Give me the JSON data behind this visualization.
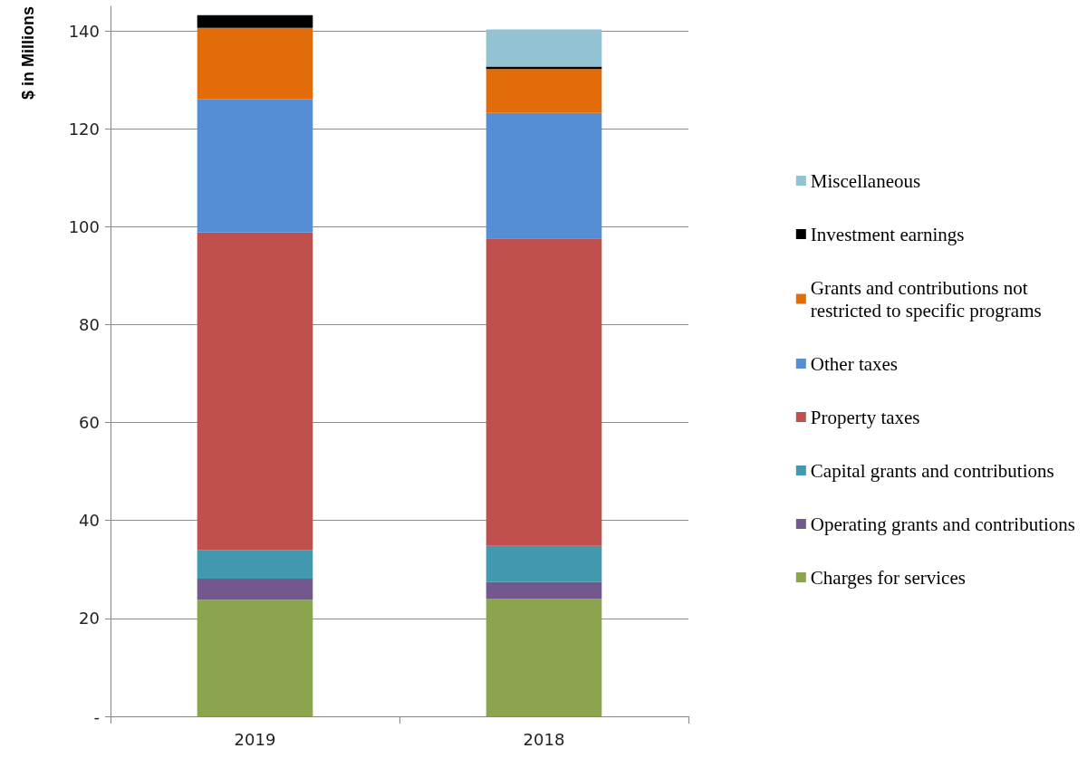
{
  "chart_data": {
    "type": "bar",
    "stacked": true,
    "ylabel": "$ in Millions",
    "categories": [
      "2019",
      "2018"
    ],
    "series": [
      {
        "name": "Charges for services",
        "color": "#8aa54e",
        "values": [
          23.8,
          24.0
        ]
      },
      {
        "name": "Operating grants and contributions",
        "color": "#72588c",
        "values": [
          4.3,
          3.4
        ]
      },
      {
        "name": "Capital grants and contributions",
        "color": "#4298af",
        "values": [
          5.9,
          7.4
        ]
      },
      {
        "name": "Property taxes",
        "color": "#c0504d",
        "values": [
          64.8,
          62.8
        ]
      },
      {
        "name": "Other taxes",
        "color": "#558ed5",
        "values": [
          27.2,
          25.6
        ]
      },
      {
        "name": "Grants and contributions not restricted to specific programs",
        "color": "#e36c0a",
        "values": [
          14.6,
          9.0
        ]
      },
      {
        "name": "Investment earnings",
        "color": "#000000",
        "values": [
          2.6,
          0.5
        ]
      },
      {
        "name": "Miscellaneous",
        "color": "#93c3d3",
        "values": [
          null,
          7.6
        ]
      }
    ],
    "ylim": [
      0,
      145
    ],
    "yticks": [
      {
        "value": 0,
        "label": "-"
      },
      20,
      40,
      60,
      80,
      100,
      120,
      140
    ],
    "grid": "y",
    "legend": "right"
  }
}
